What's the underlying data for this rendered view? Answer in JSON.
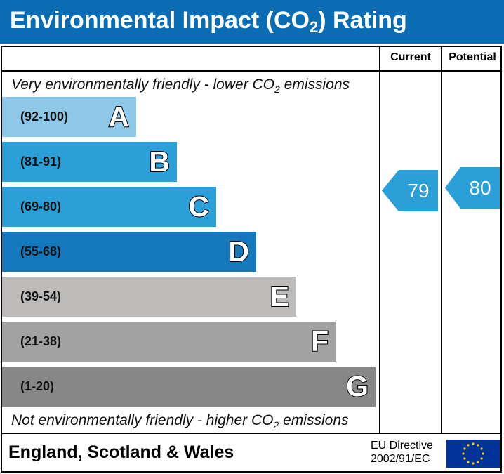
{
  "header": {
    "title_pre": "Environmental Impact (CO",
    "title_sub": "2",
    "title_post": ") Rating"
  },
  "columns": {
    "current": "Current",
    "potential": "Potential"
  },
  "notes": {
    "top_pre": "Very environmentally friendly - lower CO",
    "top_sub": "2",
    "top_post": " emissions",
    "bottom_pre": "Not environmentally friendly - higher CO",
    "bottom_sub": "2",
    "bottom_post": " emissions"
  },
  "chart_data": {
    "type": "bar",
    "bands": [
      {
        "letter": "A",
        "range": "(92-100)",
        "color": "#8dc8e8"
      },
      {
        "letter": "B",
        "range": "(81-91)",
        "color": "#2a9fd8"
      },
      {
        "letter": "C",
        "range": "(69-80)",
        "color": "#2a9fd8"
      },
      {
        "letter": "D",
        "range": "(55-68)",
        "color": "#1478bd"
      },
      {
        "letter": "E",
        "range": "(39-54)",
        "color": "#bdbcbb"
      },
      {
        "letter": "F",
        "range": "(21-38)",
        "color": "#a3a2a2"
      },
      {
        "letter": "G",
        "range": "(1-20)",
        "color": "#878787"
      }
    ],
    "current": {
      "value": "79",
      "band": "C",
      "color": "#2a9fd8"
    },
    "potential": {
      "value": "80",
      "band": "C",
      "color": "#2a9fd8"
    }
  },
  "footer": {
    "region": "England, Scotland & Wales",
    "directive_line1": "EU Directive",
    "directive_line2": "2002/91/EC"
  }
}
